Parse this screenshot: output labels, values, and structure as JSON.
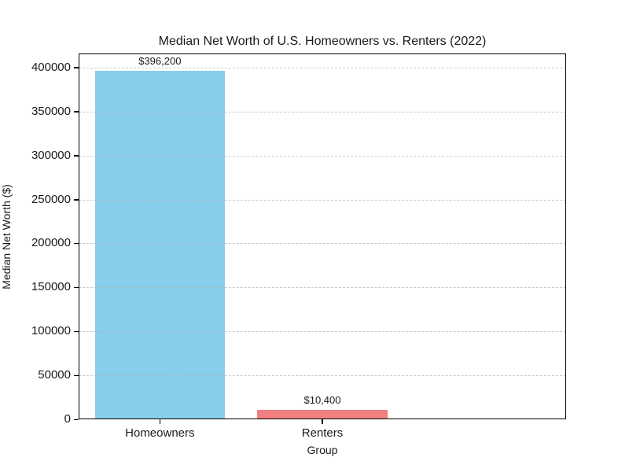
{
  "chart_data": {
    "type": "bar",
    "title": "Median Net Worth of U.S. Homeowners vs. Renters (2022)",
    "xlabel": "Group",
    "ylabel": "Median Net Worth ($)",
    "categories": [
      "Homeowners",
      "Renters"
    ],
    "values": [
      396200,
      10400
    ],
    "bar_labels": [
      "$396,200",
      "$10,400"
    ],
    "bar_colors": [
      "#87ceeb",
      "#f08080"
    ],
    "yticks": [
      0,
      50000,
      100000,
      150000,
      200000,
      250000,
      300000,
      350000,
      400000
    ],
    "ytick_labels": [
      "0",
      "50000",
      "100000",
      "150000",
      "200000",
      "250000",
      "300000",
      "350000",
      "400000"
    ],
    "ylim": [
      0,
      416000
    ],
    "bar_width_fraction": 0.8,
    "grid": "horizontal dashed",
    "grid_color": "#afafaf",
    "legend": "none",
    "text_color": "#1a1a1a",
    "spine_color": "#000000",
    "background_color": "#ffffff"
  }
}
